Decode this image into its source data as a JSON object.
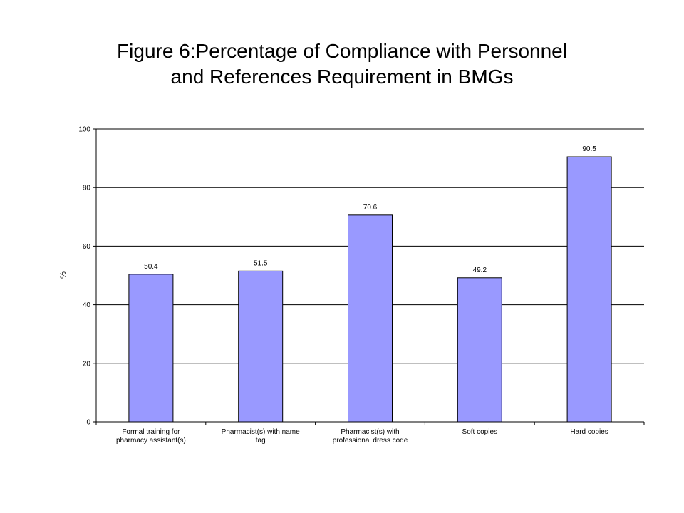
{
  "chart_data": {
    "type": "bar",
    "title_lines": [
      "Figure 6:Percentage of Compliance with Personnel",
      "and References Requirement in BMGs"
    ],
    "categories": [
      [
        "Formal training for",
        "pharmacy assistant(s)"
      ],
      [
        "Pharmacist(s) with name",
        "tag"
      ],
      [
        "Pharmacist(s) with",
        "professional dress code"
      ],
      [
        "Soft copies"
      ],
      [
        "Hard copies"
      ]
    ],
    "values": [
      50.4,
      51.5,
      70.6,
      49.2,
      90.5
    ],
    "value_labels": [
      "50.4",
      "51.5",
      "70.6",
      "49.2",
      "90.5"
    ],
    "ylabel": "%",
    "xlabel": "",
    "ylim": [
      0,
      100
    ],
    "yticks": [
      0,
      20,
      40,
      60,
      80,
      100
    ],
    "grid": true,
    "legend": "none",
    "bar_color": "#9999ff",
    "bar_edge_color": "#000000"
  }
}
